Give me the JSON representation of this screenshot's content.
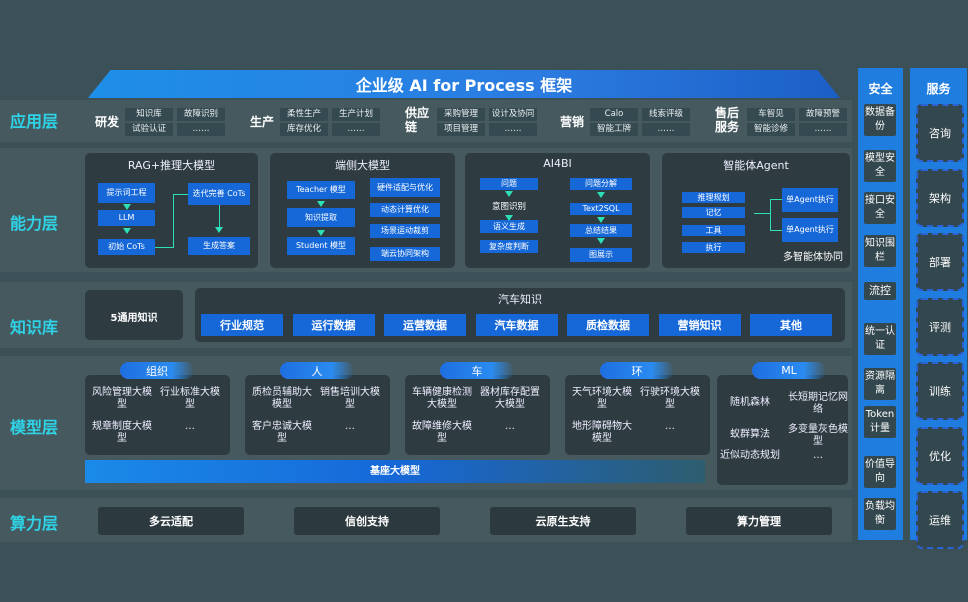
{
  "title": "企业级 AI for Process 框架",
  "layers": [
    "应用层",
    "能力层",
    "知识库",
    "模型层",
    "算力层"
  ],
  "app_groups": [
    {
      "name": "研发",
      "items": [
        "知识库",
        "故障识别",
        "试验认证",
        "……"
      ]
    },
    {
      "name": "生产",
      "items": [
        "柔性生产",
        "生产计划",
        "库存优化",
        "……"
      ]
    },
    {
      "name": "供应链",
      "items": [
        "采购管理",
        "设计及协同",
        "项目管理",
        "……"
      ]
    },
    {
      "name": "营销",
      "items": [
        "Calo",
        "线索评级",
        "智能工牌",
        "……"
      ]
    },
    {
      "name": "售后服务",
      "items": [
        "车智见",
        "故障预警",
        "智能诊修",
        "……"
      ]
    }
  ],
  "capabilities": [
    {
      "title": "RAG+推理大模型",
      "nodes": [
        "提示词工程",
        "LLM",
        "初始 CoTs",
        "迭代完善 CoTs",
        "生成答案"
      ]
    },
    {
      "title": "端侧大模型",
      "nodes": [
        "Teacher 模型",
        "知识提取",
        "Student 模型",
        "硬件适配与优化",
        "动态计算优化",
        "场景运动裁剪",
        "端云协同架构"
      ]
    },
    {
      "title": "AI4BI",
      "nodes": [
        "问题",
        "意图识别",
        "语义生成",
        "复杂度判断",
        "问题分解",
        "Text2SQL",
        "总结结果",
        "图展示"
      ]
    },
    {
      "title": "智能体Agent",
      "nodes": [
        "推理规划",
        "记忆",
        "工具",
        "执行",
        "单Agent执行",
        "单Agent执行",
        "多智能体协同"
      ]
    }
  ],
  "knowledge": {
    "general": "5通用知识",
    "auto_title": "汽车知识",
    "items": [
      "行业规范",
      "运行数据",
      "运营数据",
      "汽车数据",
      "质检数据",
      "营销知识",
      "其他"
    ]
  },
  "models": [
    {
      "tag": "组织",
      "items": [
        "风险管理大模型",
        "行业标准大模型",
        "规章制度大模型",
        "…"
      ]
    },
    {
      "tag": "人",
      "items": [
        "质检员辅助大模型",
        "销售培训大模型",
        "客户忠诚大模型",
        "…"
      ]
    },
    {
      "tag": "车",
      "items": [
        "车辆健康检测大模型",
        "器材库存配置大模型",
        "故障维修大模型",
        "…"
      ]
    },
    {
      "tag": "环",
      "items": [
        "天气环境大模型",
        "行驶环境大模型",
        "地形障碍物大模型",
        "…"
      ]
    },
    {
      "tag": "ML",
      "items": [
        "随机森林",
        "长短期记忆网络",
        "蚁群算法",
        "多变量灰色模型",
        "近似动态规划",
        "…"
      ]
    }
  ],
  "base_model": "基座大模型",
  "compute": [
    "多云适配",
    "信创支持",
    "云原生支持",
    "算力管理"
  ],
  "security": {
    "title": "安全",
    "items": [
      "数据备份",
      "模型安全",
      "接口安全",
      "知识围栏",
      "流控",
      "统一认证",
      "资源隔离",
      "Token计量",
      "价值导向",
      "负载均衡"
    ]
  },
  "services": {
    "title": "服务",
    "items": [
      "咨询",
      "架构",
      "部署",
      "评测",
      "训练",
      "优化",
      "运维"
    ]
  },
  "colors": {
    "background": "#3c5157",
    "accent_blue": "#1668d8",
    "layer_label": "#2fd3e6",
    "arrow": "#2ee0b8"
  }
}
